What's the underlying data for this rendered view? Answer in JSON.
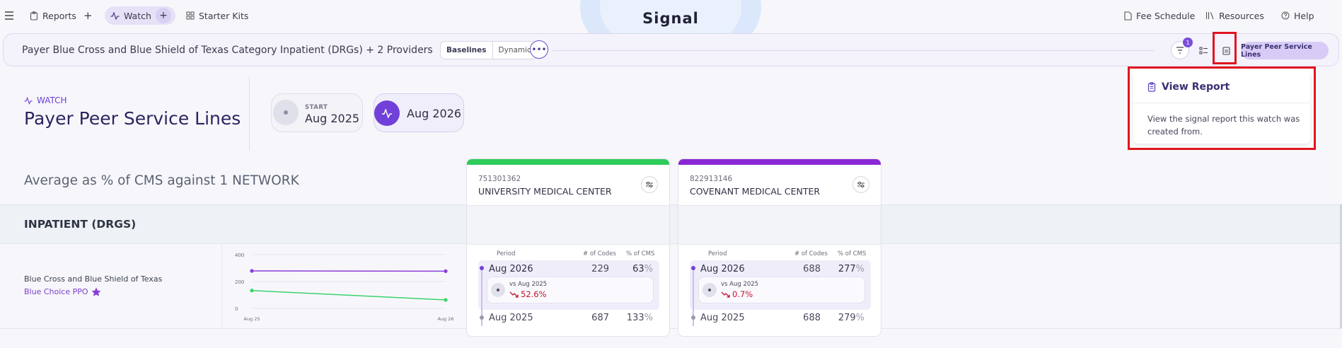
{
  "topbar": {
    "reports_label": "Reports",
    "watch_label": "Watch",
    "starter_kits_label": "Starter Kits",
    "brand": "Signal",
    "fee_schedule_label": "Fee Schedule",
    "resources_label": "Resources",
    "help_label": "Help"
  },
  "filterbar": {
    "title": "Payer Blue Cross and Blue Shield of Texas Category Inpatient (DRGs) + 2 Providers",
    "seg_baselines": "Baselines",
    "seg_dynamic": "Dynamic",
    "filter_badge": "1",
    "peer_pill": "Payer Peer Service Lines"
  },
  "popover": {
    "title": "View Report",
    "body": "View the signal report this watch was created from."
  },
  "header": {
    "watch_label": "WATCH",
    "title": "Payer Peer Service Lines",
    "start_label": "START",
    "start_value": "Aug 2025",
    "current_value": "Aug 2026"
  },
  "section": {
    "avg_title": "Average as % of CMS against 1 NETWORK",
    "category": "INPATIENT (DRGS)",
    "payer": "Blue Cross and Blue Shield of Texas",
    "plan": "Blue Choice PPO"
  },
  "chart_data": {
    "type": "line",
    "x": [
      "Aug 25",
      "Aug 26"
    ],
    "yticks": [
      "400",
      "200",
      "0"
    ],
    "ylim": [
      0,
      400
    ],
    "series": [
      {
        "values": [
          279,
          277
        ],
        "color": "#8a3fd6"
      },
      {
        "values": [
          133,
          63
        ],
        "color": "#3ad36b"
      }
    ]
  },
  "providers": [
    {
      "id": "751301362",
      "name": "UNIVERSITY MEDICAL CENTER",
      "color": "#2ecc5a",
      "hdr_period": "Period",
      "hdr_codes": "# of Codes",
      "hdr_pct": "% of CMS",
      "cur_period": "Aug 2026",
      "cur_codes": "229",
      "cur_pct": "63",
      "vs_label": "vs Aug 2025",
      "vs_value": "52.6%",
      "prev_period": "Aug 2025",
      "prev_codes": "687",
      "prev_pct": "133"
    },
    {
      "id": "822913146",
      "name": "COVENANT MEDICAL CENTER",
      "color": "#8a28d4",
      "hdr_period": "Period",
      "hdr_codes": "# of Codes",
      "hdr_pct": "% of CMS",
      "cur_period": "Aug 2026",
      "cur_codes": "688",
      "cur_pct": "277",
      "vs_label": "vs Aug 2025",
      "vs_value": "0.7%",
      "prev_period": "Aug 2025",
      "prev_codes": "688",
      "prev_pct": "279"
    }
  ],
  "units": {
    "pct": "%"
  }
}
